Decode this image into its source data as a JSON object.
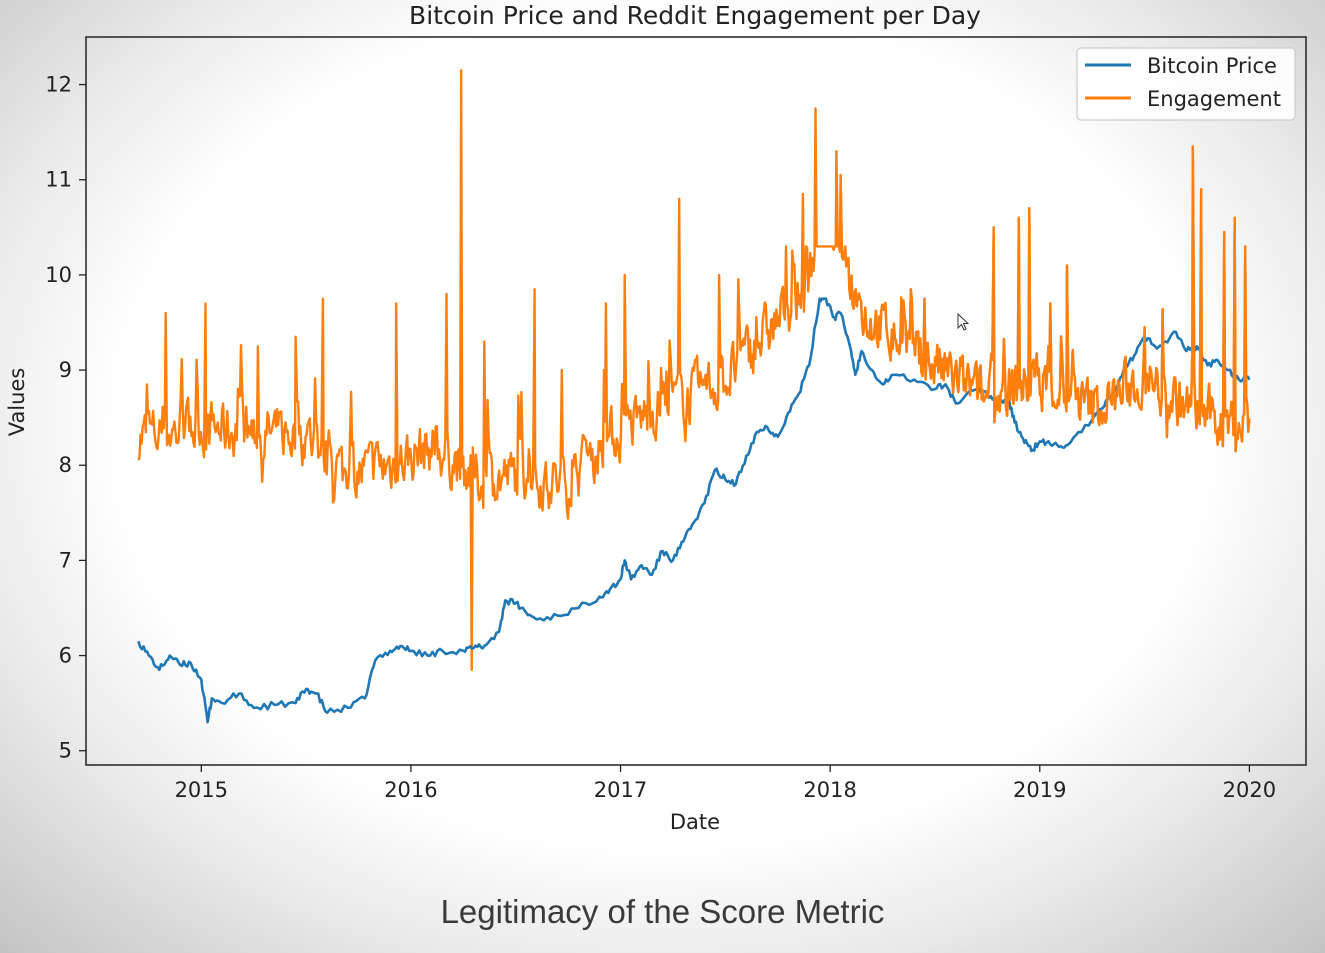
{
  "slide": {
    "caption": "Legitimacy of the Score Metric"
  },
  "chart_data": {
    "type": "line",
    "title": "Bitcoin Price and Reddit Engagement per Day",
    "xlabel": "Date",
    "ylabel": "Values",
    "x_ticks": [
      "2015",
      "2016",
      "2017",
      "2018",
      "2019",
      "2020"
    ],
    "y_ticks": [
      5,
      6,
      7,
      8,
      9,
      10,
      11,
      12
    ],
    "xlim": [
      2014.45,
      2020.27
    ],
    "ylim": [
      4.85,
      12.5
    ],
    "grid": false,
    "legend_position": "top-right",
    "series": [
      {
        "name": "Bitcoin Price",
        "color": "#1f77b4",
        "points": [
          [
            2014.7,
            6.15
          ],
          [
            2014.75,
            6.0
          ],
          [
            2014.8,
            5.85
          ],
          [
            2014.85,
            6.0
          ],
          [
            2014.9,
            5.9
          ],
          [
            2014.95,
            5.92
          ],
          [
            2015.0,
            5.75
          ],
          [
            2015.03,
            5.3
          ],
          [
            2015.05,
            5.55
          ],
          [
            2015.1,
            5.5
          ],
          [
            2015.18,
            5.6
          ],
          [
            2015.25,
            5.45
          ],
          [
            2015.35,
            5.48
          ],
          [
            2015.45,
            5.5
          ],
          [
            2015.5,
            5.65
          ],
          [
            2015.55,
            5.6
          ],
          [
            2015.6,
            5.4
          ],
          [
            2015.7,
            5.45
          ],
          [
            2015.78,
            5.55
          ],
          [
            2015.83,
            5.95
          ],
          [
            2015.9,
            6.05
          ],
          [
            2015.95,
            6.1
          ],
          [
            2016.0,
            6.05
          ],
          [
            2016.08,
            6.0
          ],
          [
            2016.15,
            6.05
          ],
          [
            2016.25,
            6.05
          ],
          [
            2016.3,
            6.08
          ],
          [
            2016.35,
            6.1
          ],
          [
            2016.42,
            6.25
          ],
          [
            2016.45,
            6.58
          ],
          [
            2016.5,
            6.55
          ],
          [
            2016.55,
            6.45
          ],
          [
            2016.6,
            6.38
          ],
          [
            2016.7,
            6.42
          ],
          [
            2016.8,
            6.5
          ],
          [
            2016.9,
            6.62
          ],
          [
            2016.95,
            6.7
          ],
          [
            2017.0,
            6.8
          ],
          [
            2017.02,
            7.0
          ],
          [
            2017.05,
            6.8
          ],
          [
            2017.1,
            6.95
          ],
          [
            2017.15,
            6.85
          ],
          [
            2017.2,
            7.1
          ],
          [
            2017.25,
            7.0
          ],
          [
            2017.3,
            7.2
          ],
          [
            2017.35,
            7.4
          ],
          [
            2017.4,
            7.6
          ],
          [
            2017.45,
            7.95
          ],
          [
            2017.5,
            7.85
          ],
          [
            2017.55,
            7.8
          ],
          [
            2017.6,
            8.1
          ],
          [
            2017.65,
            8.35
          ],
          [
            2017.7,
            8.4
          ],
          [
            2017.75,
            8.3
          ],
          [
            2017.8,
            8.55
          ],
          [
            2017.85,
            8.75
          ],
          [
            2017.9,
            9.05
          ],
          [
            2017.95,
            9.75
          ],
          [
            2017.98,
            9.75
          ],
          [
            2018.02,
            9.55
          ],
          [
            2018.05,
            9.6
          ],
          [
            2018.1,
            9.2
          ],
          [
            2018.12,
            8.95
          ],
          [
            2018.15,
            9.2
          ],
          [
            2018.2,
            9.0
          ],
          [
            2018.25,
            8.85
          ],
          [
            2018.3,
            8.95
          ],
          [
            2018.4,
            8.9
          ],
          [
            2018.5,
            8.8
          ],
          [
            2018.55,
            8.85
          ],
          [
            2018.6,
            8.65
          ],
          [
            2018.7,
            8.8
          ],
          [
            2018.75,
            8.75
          ],
          [
            2018.8,
            8.68
          ],
          [
            2018.85,
            8.7
          ],
          [
            2018.88,
            8.45
          ],
          [
            2018.92,
            8.28
          ],
          [
            2018.96,
            8.15
          ],
          [
            2019.0,
            8.25
          ],
          [
            2019.05,
            8.22
          ],
          [
            2019.1,
            8.2
          ],
          [
            2019.15,
            8.25
          ],
          [
            2019.2,
            8.35
          ],
          [
            2019.3,
            8.6
          ],
          [
            2019.35,
            8.75
          ],
          [
            2019.4,
            9.0
          ],
          [
            2019.45,
            9.15
          ],
          [
            2019.5,
            9.35
          ],
          [
            2019.55,
            9.25
          ],
          [
            2019.6,
            9.3
          ],
          [
            2019.65,
            9.4
          ],
          [
            2019.7,
            9.2
          ],
          [
            2019.75,
            9.25
          ],
          [
            2019.8,
            9.05
          ],
          [
            2019.85,
            9.1
          ],
          [
            2019.9,
            9.0
          ],
          [
            2019.95,
            8.9
          ],
          [
            2020.0,
            8.9
          ]
        ]
      },
      {
        "name": "Engagement",
        "color": "#ff7f0e",
        "anchors": [
          [
            2014.7,
            8.3
          ],
          [
            2015.0,
            8.4
          ],
          [
            2015.5,
            8.3
          ],
          [
            2015.7,
            7.9
          ],
          [
            2015.9,
            8.0
          ],
          [
            2016.1,
            8.2
          ],
          [
            2016.25,
            8.0
          ],
          [
            2016.35,
            7.8
          ],
          [
            2016.5,
            7.9
          ],
          [
            2016.75,
            7.8
          ],
          [
            2016.9,
            8.2
          ],
          [
            2017.1,
            8.5
          ],
          [
            2017.3,
            8.7
          ],
          [
            2017.5,
            8.9
          ],
          [
            2017.7,
            9.4
          ],
          [
            2017.9,
            9.9
          ],
          [
            2017.95,
            10.7
          ],
          [
            2018.05,
            10.3
          ],
          [
            2018.15,
            9.6
          ],
          [
            2018.4,
            9.2
          ],
          [
            2018.6,
            8.9
          ],
          [
            2018.75,
            8.7
          ],
          [
            2018.9,
            8.8
          ],
          [
            2019.0,
            8.9
          ],
          [
            2019.25,
            8.6
          ],
          [
            2019.5,
            8.9
          ],
          [
            2019.75,
            8.55
          ],
          [
            2020.0,
            8.4
          ]
        ],
        "spikes": [
          [
            2014.83,
            9.6
          ],
          [
            2015.02,
            9.7
          ],
          [
            2015.27,
            9.25
          ],
          [
            2015.45,
            9.35
          ],
          [
            2015.58,
            9.75
          ],
          [
            2015.93,
            9.7
          ],
          [
            2016.17,
            9.8
          ],
          [
            2016.24,
            12.15
          ],
          [
            2016.29,
            5.85
          ],
          [
            2016.35,
            9.3
          ],
          [
            2016.59,
            9.85
          ],
          [
            2016.72,
            9.0
          ],
          [
            2016.93,
            9.7
          ],
          [
            2017.02,
            10.0
          ],
          [
            2017.28,
            10.8
          ],
          [
            2017.47,
            10.0
          ],
          [
            2017.87,
            10.85
          ],
          [
            2017.93,
            11.75
          ],
          [
            2018.03,
            11.3
          ],
          [
            2018.05,
            11.05
          ],
          [
            2018.45,
            9.75
          ],
          [
            2018.78,
            10.5
          ],
          [
            2018.9,
            10.6
          ],
          [
            2018.95,
            10.7
          ],
          [
            2019.05,
            9.7
          ],
          [
            2019.13,
            10.1
          ],
          [
            2019.5,
            9.45
          ],
          [
            2019.73,
            11.35
          ],
          [
            2019.77,
            10.9
          ],
          [
            2019.88,
            10.45
          ],
          [
            2019.93,
            10.6
          ],
          [
            2019.98,
            10.3
          ]
        ]
      }
    ]
  }
}
